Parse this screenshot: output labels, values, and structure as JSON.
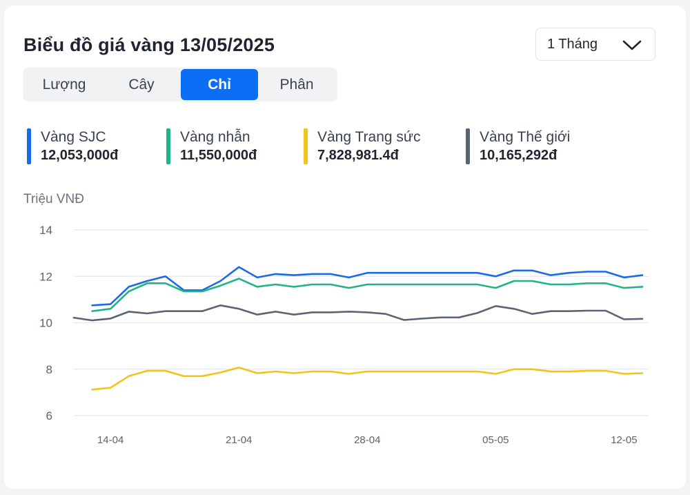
{
  "header": {
    "title": "Biểu đồ giá vàng 13/05/2025",
    "period_select": {
      "selected": "1 Tháng"
    }
  },
  "unit_tabs": [
    {
      "label": "Lượng",
      "active": false
    },
    {
      "label": "Cây",
      "active": false
    },
    {
      "label": "Chỉ",
      "active": true
    },
    {
      "label": "Phân",
      "active": false
    }
  ],
  "legend": [
    {
      "name": "Vàng SJC",
      "value": "12,053,000đ",
      "color": "#1a6ae6"
    },
    {
      "name": "Vàng nhẫn",
      "value": "11,550,000đ",
      "color": "#1eb487"
    },
    {
      "name": "Vàng Trang sức",
      "value": "7,828,981.4đ",
      "color": "#f5c21b"
    },
    {
      "name": "Vàng Thế giới",
      "value": "10,165,292đ",
      "color": "#5a6475"
    }
  ],
  "chart_data": {
    "type": "line",
    "ylabel": "Triệu VNĐ",
    "ylim": [
      6,
      14
    ],
    "yticks": [
      14,
      12,
      10,
      8,
      6
    ],
    "grid": true,
    "x": [
      "12-04",
      "13-04",
      "14-04",
      "15-04",
      "16-04",
      "17-04",
      "18-04",
      "19-04",
      "20-04",
      "21-04",
      "22-04",
      "23-04",
      "24-04",
      "25-04",
      "26-04",
      "27-04",
      "28-04",
      "29-04",
      "30-04",
      "01-05",
      "02-05",
      "03-05",
      "04-05",
      "05-05",
      "06-05",
      "07-05",
      "08-05",
      "09-05",
      "10-05",
      "11-05",
      "12-05",
      "13-05"
    ],
    "xticks": [
      "14-04",
      "21-04",
      "28-04",
      "05-05",
      "12-05"
    ],
    "series": [
      {
        "name": "Vàng SJC",
        "color": "#1a6ae6",
        "values": [
          null,
          10.75,
          10.8,
          11.55,
          11.8,
          12.0,
          11.4,
          11.4,
          11.8,
          12.4,
          11.95,
          12.1,
          12.05,
          12.1,
          12.1,
          11.95,
          12.15,
          12.15,
          12.15,
          12.15,
          12.15,
          12.15,
          12.15,
          12.0,
          12.25,
          12.25,
          12.05,
          12.15,
          12.2,
          12.2,
          11.95,
          12.05
        ]
      },
      {
        "name": "Vàng nhẫn",
        "color": "#1eb487",
        "values": [
          null,
          10.5,
          10.6,
          11.35,
          11.7,
          11.7,
          11.35,
          11.35,
          11.6,
          11.9,
          11.55,
          11.65,
          11.55,
          11.65,
          11.65,
          11.5,
          11.65,
          11.65,
          11.65,
          11.65,
          11.65,
          11.65,
          11.65,
          11.5,
          11.8,
          11.8,
          11.65,
          11.65,
          11.7,
          11.7,
          11.5,
          11.55
        ]
      },
      {
        "name": "Vàng Trang sức",
        "color": "#f5c21b",
        "values": [
          null,
          7.12,
          7.2,
          7.7,
          7.93,
          7.93,
          7.7,
          7.7,
          7.86,
          8.07,
          7.83,
          7.9,
          7.83,
          7.9,
          7.9,
          7.8,
          7.9,
          7.9,
          7.9,
          7.9,
          7.9,
          7.9,
          7.9,
          7.8,
          8.0,
          8.0,
          7.9,
          7.9,
          7.93,
          7.93,
          7.8,
          7.83
        ]
      },
      {
        "name": "Vàng Thế giới",
        "color": "#5a6475",
        "values": [
          10.22,
          10.1,
          10.18,
          10.48,
          10.4,
          10.5,
          10.5,
          10.5,
          10.75,
          10.6,
          10.35,
          10.48,
          10.35,
          10.45,
          10.45,
          10.48,
          10.45,
          10.38,
          10.12,
          10.18,
          10.23,
          10.23,
          10.42,
          10.72,
          10.6,
          10.38,
          10.5,
          10.5,
          10.52,
          10.52,
          10.15,
          10.17
        ]
      }
    ]
  }
}
